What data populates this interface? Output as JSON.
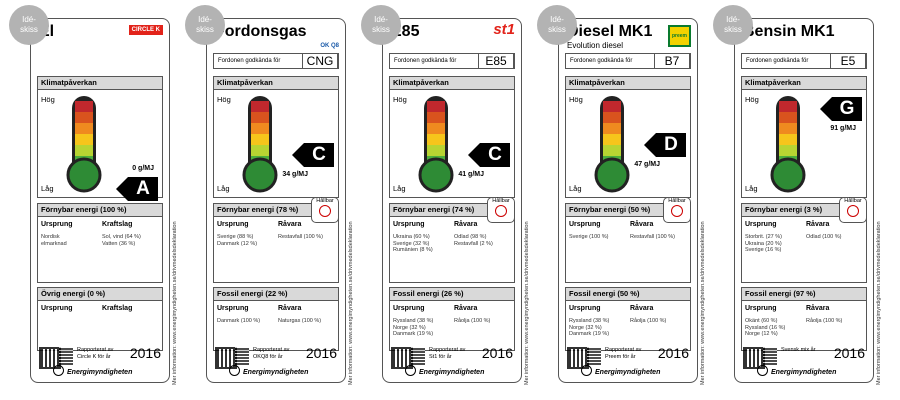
{
  "labels": [
    {
      "badge": [
        "Idé-",
        "skiss"
      ],
      "title": "El",
      "brand": "CIRCLE K",
      "climate": {
        "title": "Klimatpåverkan",
        "high": "Hög",
        "low": "Låg",
        "grade": "A",
        "emission": "0 g/MJ"
      },
      "renewable": {
        "header": "Förnybar energi (100 %)",
        "columns": [
          "Ursprung",
          "Kraftslag"
        ],
        "origin": [
          "Nordisk",
          "elmarknad"
        ],
        "source": [
          "Sol, vind (64 %)",
          "Vatten (36 %)"
        ]
      },
      "other": {
        "header": "Övrig energi (0 %)",
        "columns": [
          "Ursprung",
          "Kraftslag"
        ],
        "origin": [],
        "source": []
      },
      "footer": {
        "reported": [
          "Rapporterat av",
          "Circle K för år"
        ],
        "year": 2016,
        "authority": "Energimyndigheten"
      },
      "side_note": "Mer information: www.energimyndigheten.se/drivmedelsdeklaration"
    },
    {
      "badge": [
        "Idé-",
        "skiss"
      ],
      "title": "Fordonsgas",
      "brand": "OK Q8",
      "approved": {
        "label": "Fordonen godkända för",
        "code": "CNG"
      },
      "climate": {
        "title": "Klimatpåverkan",
        "high": "Hög",
        "low": "Låg",
        "grade": "C",
        "emission": "34 g/MJ"
      },
      "renewable": {
        "header": "Förnybar energi (78 %)",
        "columns": [
          "Ursprung",
          "Råvara"
        ],
        "origin": [
          "Sverige (88 %)",
          "Danmark (12 %)"
        ],
        "source": [
          "Restavfall (100 %)"
        ],
        "certified": "Hållbar"
      },
      "other": {
        "header": "Fossil energi (22 %)",
        "columns": [
          "Ursprung",
          "Råvara"
        ],
        "origin": [
          "Danmark (100 %)"
        ],
        "source": [
          "Naturgas (100 %)"
        ]
      },
      "footer": {
        "reported": [
          "Rapporterat av",
          "OKQ8 för år"
        ],
        "year": 2016,
        "authority": "Energimyndigheten"
      },
      "side_note": "Mer information: www.energimyndigheten.se/drivmedelsdeklaration"
    },
    {
      "badge": [
        "Idé-",
        "skiss"
      ],
      "title": "E85",
      "brand": "st1",
      "approved": {
        "label": "Fordonen godkända för",
        "code": "E85"
      },
      "climate": {
        "title": "Klimatpåverkan",
        "high": "Hög",
        "low": "Låg",
        "grade": "C",
        "emission": "41 g/MJ"
      },
      "renewable": {
        "header": "Förnybar energi (74 %)",
        "columns": [
          "Ursprung",
          "Råvara"
        ],
        "origin": [
          "Ukraina (60 %)",
          "Sverige (32 %)",
          "Rumänien (8 %)"
        ],
        "source": [
          "Odlad (98 %)",
          "Restavfall (2 %)"
        ],
        "certified": "Hållbar"
      },
      "other": {
        "header": "Fossil energi (26 %)",
        "columns": [
          "Ursprung",
          "Råvara"
        ],
        "origin": [
          "Ryssland (38 %)",
          "Norge (32 %)",
          "Danmark (19 %)"
        ],
        "source": [
          "Råolja (100 %)"
        ]
      },
      "footer": {
        "reported": [
          "Rapporterat av",
          "St1 för år"
        ],
        "year": 2016,
        "authority": "Energimyndigheten"
      },
      "side_note": "Mer information: www.energimyndigheten.se/drivmedelsdeklaration"
    },
    {
      "badge": [
        "Idé-",
        "skiss"
      ],
      "title": "Diesel MK1",
      "subtitle": "Evolution diesel",
      "brand": "preem",
      "approved": {
        "label": "Fordonen godkända för",
        "code": "B7"
      },
      "climate": {
        "title": "Klimatpåverkan",
        "high": "Hög",
        "low": "Låg",
        "grade": "D",
        "emission": "47 g/MJ"
      },
      "renewable": {
        "header": "Förnybar energi (50 %)",
        "columns": [
          "Ursprung",
          "Råvara"
        ],
        "origin": [
          "Sverige (100 %)"
        ],
        "source": [
          "Restavfall (100 %)"
        ],
        "certified": "Hållbar"
      },
      "other": {
        "header": "Fossil energi (50 %)",
        "columns": [
          "Ursprung",
          "Råvara"
        ],
        "origin": [
          "Ryssland (38 %)",
          "Norge (32 %)",
          "Danmark (19 %)"
        ],
        "source": [
          "Råolja (100 %)"
        ]
      },
      "footer": {
        "reported": [
          "Rapporterat av",
          "Preem för år"
        ],
        "year": 2016,
        "authority": "Energimyndigheten"
      },
      "side_note": "Mer information: www.energimyndigheten.se/drivmedelsdeklaration"
    },
    {
      "badge": [
        "Idé-",
        "skiss"
      ],
      "title": "Bensin MK1",
      "approved": {
        "label": "Fordonen godkända för",
        "code": "E5"
      },
      "climate": {
        "title": "Klimatpåverkan",
        "high": "Hög",
        "low": "Låg",
        "grade": "G",
        "emission": "91 g/MJ"
      },
      "renewable": {
        "header": "Förnybar energi (3 %)",
        "columns": [
          "Ursprung",
          "Råvara"
        ],
        "origin": [
          "Storbrit. (27 %)",
          "Ukraina (20 %)",
          "Sverige (16 %)"
        ],
        "source": [
          "Odlad (100 %)"
        ],
        "certified": "Hållbar"
      },
      "other": {
        "header": "Fossil energi (97 %)",
        "columns": [
          "Ursprung",
          "Råvara"
        ],
        "origin": [
          "Okänt (60 %)",
          "Ryssland (16 %)",
          "Norge (12 %)"
        ],
        "source": [
          "Råolja (100 %)"
        ]
      },
      "footer": {
        "reported": [
          "Svensk mix år"
        ],
        "year": 2016,
        "authority": "Energimyndigheten"
      },
      "side_note": "Mer information: www.energimyndigheten.se/drivmedelsdeklaration"
    }
  ]
}
